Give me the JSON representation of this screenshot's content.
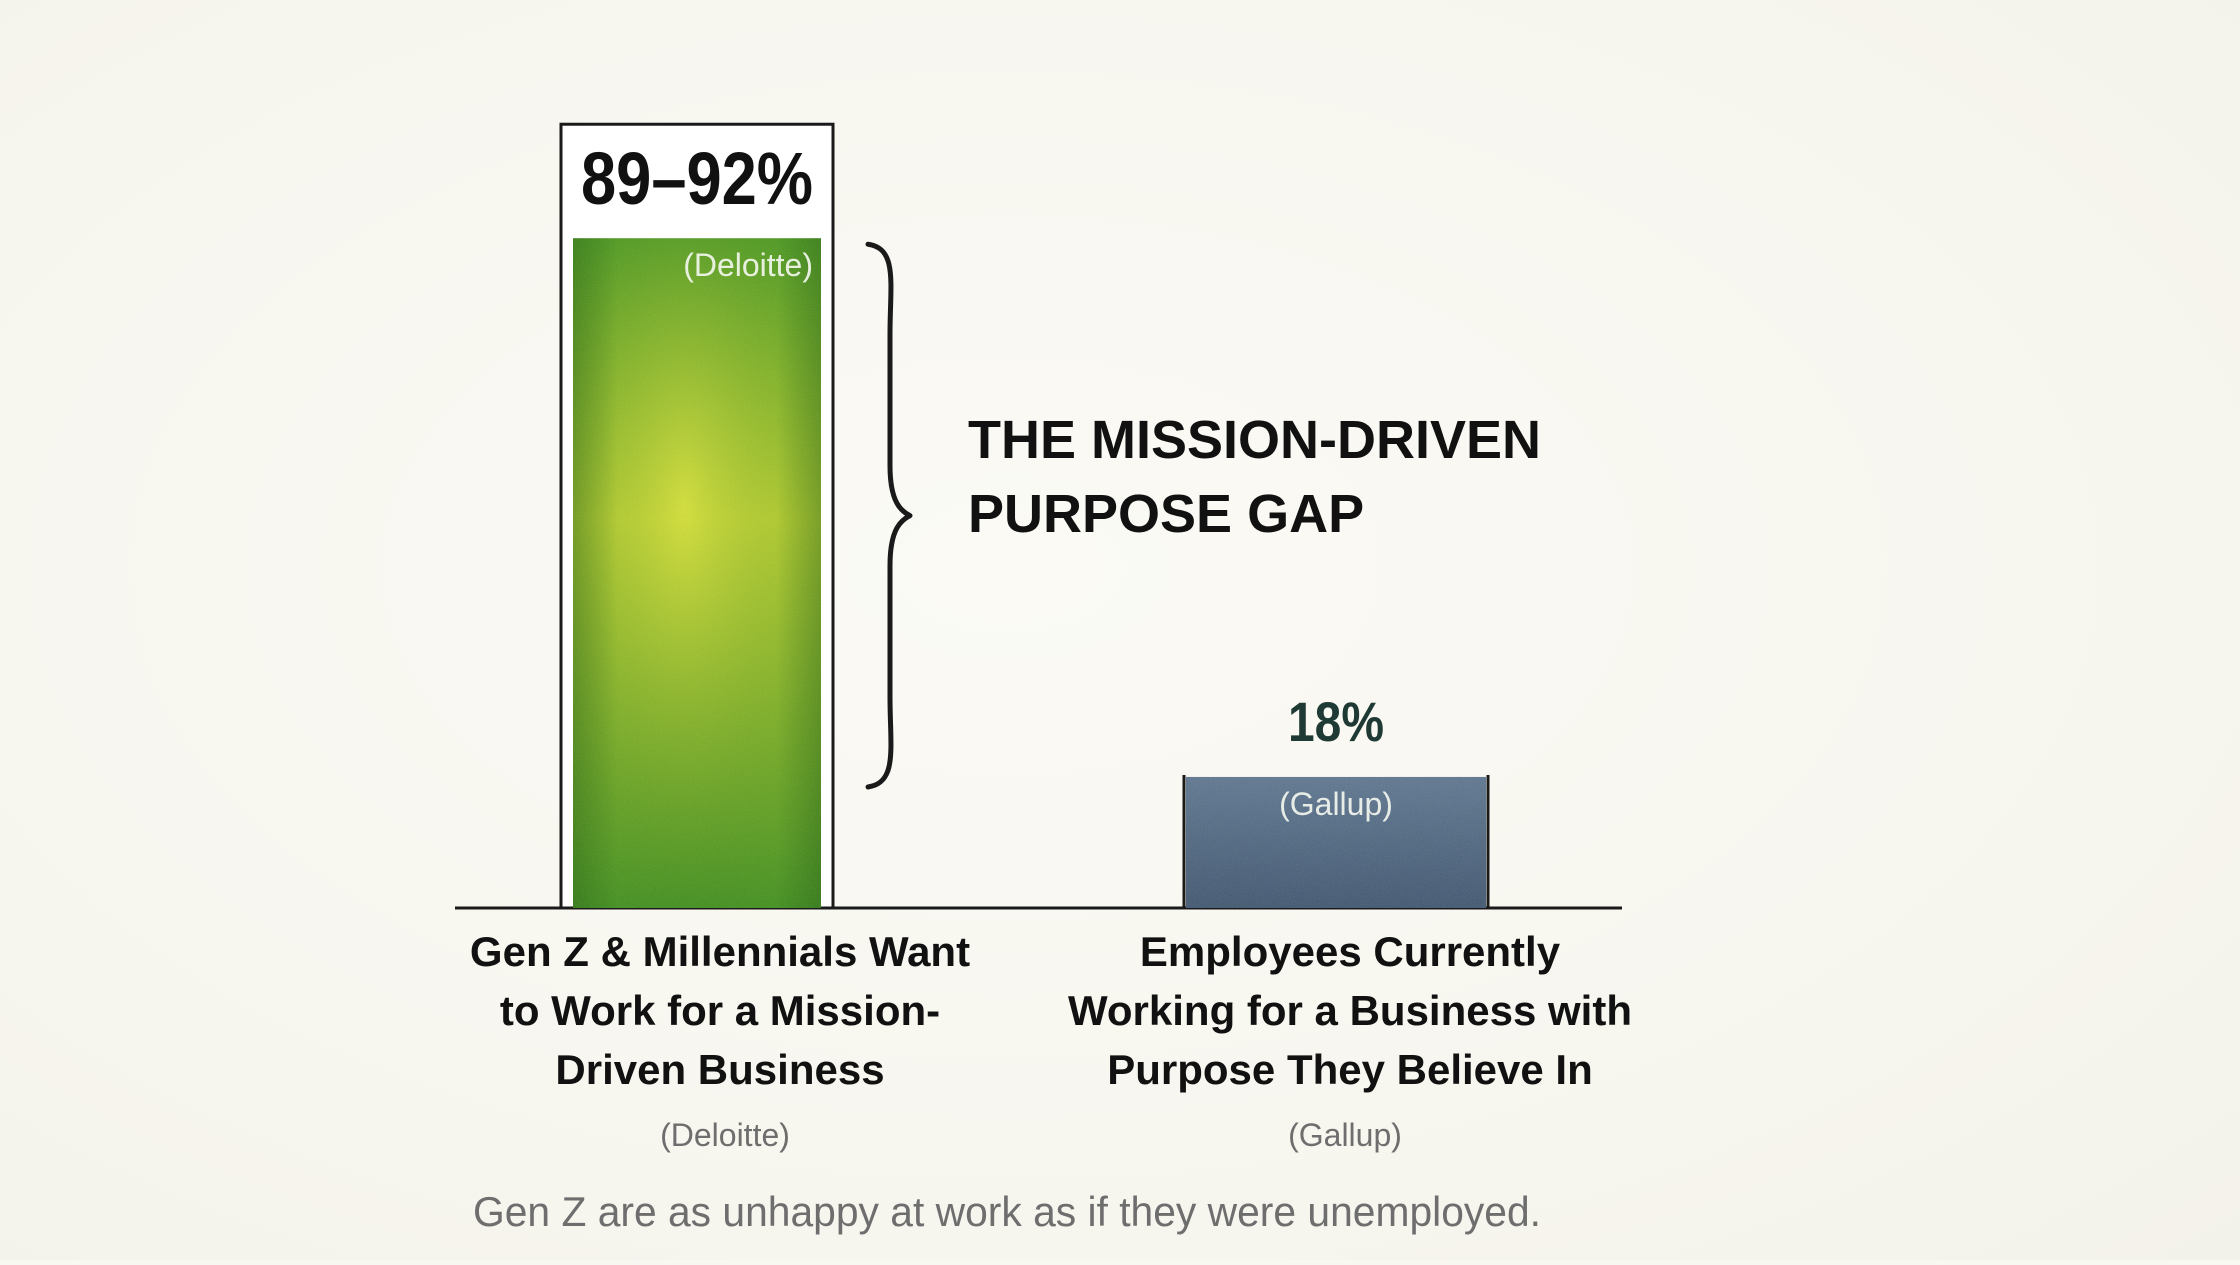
{
  "chart_data": {
    "type": "bar",
    "title": "",
    "xlabel": "",
    "ylabel": "",
    "ylim": [
      0,
      100
    ],
    "grid": false,
    "categories": [
      {
        "lines": [
          "Gen Z & Millennials Want",
          "to Work for a Mission-",
          "Driven Business"
        ],
        "source": "(Deloitte)",
        "value_label": "89–92%",
        "inner_label": "(Deloitte)",
        "value_low": 89,
        "value_high": 92
      },
      {
        "lines": [
          "Employees Currently",
          "Working for a Business with",
          "Purpose They Believe In"
        ],
        "source": "(Gallup)",
        "value_label": "18%",
        "inner_label": "(Gallup)",
        "value_low": 18,
        "value_high": 18
      }
    ],
    "annotation": {
      "lines": [
        "THE MISSION-DRIVEN",
        "PURPOSE GAP"
      ]
    },
    "footnote": "Gen Z are as unhappy at work as if they were unemployed.",
    "colors": {
      "bar1_top": "#4a9a1c",
      "bar1_mid": "#c5d82a",
      "bar1_bottom": "#3f8f1a",
      "bar2_top": "#5d7690",
      "bar2_bottom": "#3f5670",
      "frame": "#1a1a1a",
      "text": "#111111",
      "muted": "#6e6e6e",
      "value2": "#1f3a34"
    }
  }
}
